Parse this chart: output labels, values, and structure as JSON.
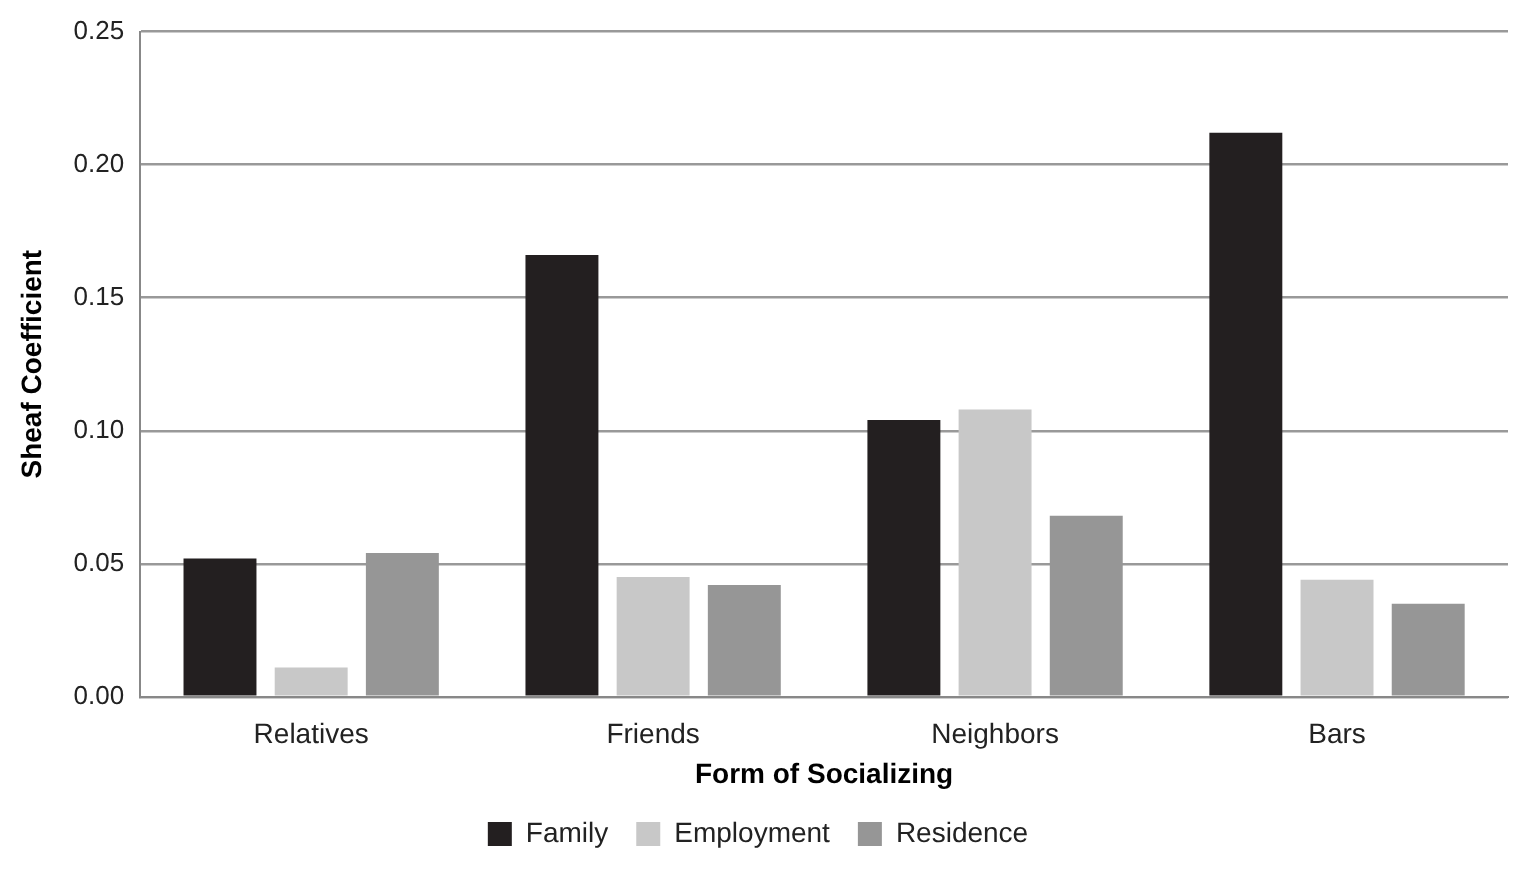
{
  "chart_data": {
    "type": "bar",
    "xlabel": "Form of Socializing",
    "ylabel": "Sheaf Coefficient",
    "categories": [
      "Relatives",
      "Friends",
      "Neighbors",
      "Bars"
    ],
    "series": [
      {
        "name": "Family",
        "color": "#231f20",
        "values": [
          0.052,
          0.166,
          0.104,
          0.212
        ]
      },
      {
        "name": "Employment",
        "color": "#c8c8c8",
        "values": [
          0.011,
          0.045,
          0.108,
          0.044
        ]
      },
      {
        "name": "Residence",
        "color": "#969696",
        "values": [
          0.054,
          0.042,
          0.068,
          0.035
        ]
      }
    ],
    "ylim": [
      0,
      0.25
    ],
    "yticks": [
      {
        "value": 0,
        "label": "0.00"
      },
      {
        "value": 0.05,
        "label": "0.05"
      },
      {
        "value": 0.1,
        "label": "0.10"
      },
      {
        "value": 0.15,
        "label": "0.15"
      },
      {
        "value": 0.2,
        "label": "0.20"
      },
      {
        "value": 0.25,
        "label": "0.25"
      }
    ],
    "grid": "y",
    "legend": "bottom"
  }
}
